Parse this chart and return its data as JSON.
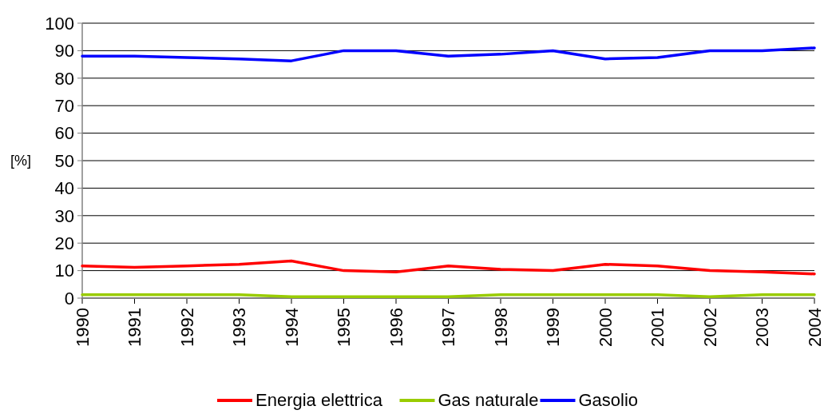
{
  "chart_data": {
    "type": "line",
    "ylabel": "[%]",
    "categories": [
      "1990",
      "1991",
      "1992",
      "1993",
      "1994",
      "1995",
      "1996",
      "1997",
      "1998",
      "1999",
      "2000",
      "2001",
      "2002",
      "2003",
      "2004"
    ],
    "series": [
      {
        "name": "Energia elettrica",
        "color": "#ff0000",
        "values": [
          11.7,
          11.2,
          11.7,
          12.3,
          13.5,
          10,
          9.5,
          11.7,
          10.5,
          10,
          12.3,
          11.7,
          10,
          9.5,
          8.8
        ]
      },
      {
        "name": "Gas naturale",
        "color": "#99cc00",
        "values": [
          1.2,
          1.2,
          1.2,
          1.2,
          0.5,
          0.5,
          0.5,
          0.5,
          1.2,
          1.2,
          1.2,
          1.2,
          0.5,
          1.2,
          1.2
        ]
      },
      {
        "name": "Gasolio",
        "color": "#0000ff",
        "values": [
          88,
          88,
          87.5,
          87,
          86.3,
          90,
          90,
          88,
          88.7,
          90,
          87,
          87.5,
          90,
          90,
          91
        ]
      }
    ],
    "ylim": [
      0,
      100
    ],
    "yticks": [
      0,
      10,
      20,
      30,
      40,
      50,
      60,
      70,
      80,
      90,
      100
    ],
    "grid": "y",
    "legend": "bottom",
    "marker": "none",
    "line_style": "solid"
  }
}
